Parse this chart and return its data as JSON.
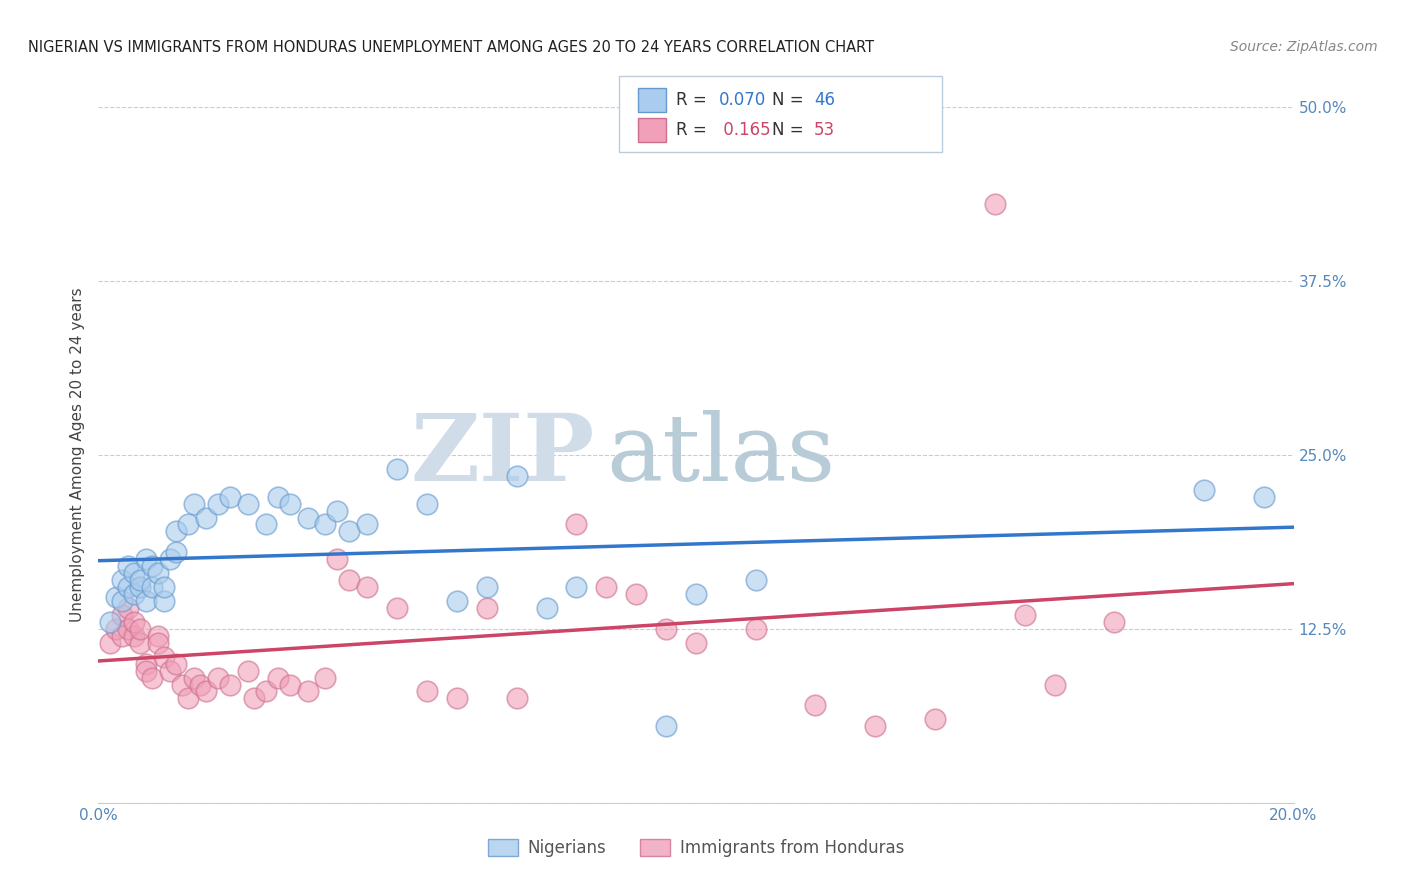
{
  "title": "NIGERIAN VS IMMIGRANTS FROM HONDURAS UNEMPLOYMENT AMONG AGES 20 TO 24 YEARS CORRELATION CHART",
  "source": "Source: ZipAtlas.com",
  "ylabel": "Unemployment Among Ages 20 to 24 years",
  "xlim": [
    0.0,
    0.2
  ],
  "ylim": [
    0.0,
    0.5
  ],
  "yticks": [
    0.0,
    0.125,
    0.25,
    0.375,
    0.5
  ],
  "ytick_labels": [
    "",
    "12.5%",
    "25.0%",
    "37.5%",
    "50.0%"
  ],
  "xticks": [
    0.0,
    0.04,
    0.08,
    0.12,
    0.16,
    0.2
  ],
  "xtick_labels": [
    "0.0%",
    "",
    "",
    "",
    "",
    "20.0%"
  ],
  "nigerian_color": "#aaccee",
  "honduras_color": "#f0a0b8",
  "nigerian_edge": "#6699cc",
  "honduras_edge": "#cc7090",
  "trend_nigerian_color": "#3377cc",
  "trend_honduras_color": "#cc4466",
  "background_color": "#ffffff",
  "grid_color": "#cccccc",
  "title_color": "#222222",
  "axis_label_color": "#5588bb",
  "watermark_zip_color": "#d0dce8",
  "watermark_atlas_color": "#b8ccd8",
  "lentry1_R": "0.070",
  "lentry1_N": "46",
  "lentry2_R": "0.165",
  "lentry2_N": "53",
  "nigerian_x": [
    0.002,
    0.003,
    0.004,
    0.004,
    0.005,
    0.005,
    0.006,
    0.006,
    0.007,
    0.007,
    0.008,
    0.008,
    0.009,
    0.009,
    0.01,
    0.011,
    0.011,
    0.012,
    0.013,
    0.013,
    0.015,
    0.016,
    0.018,
    0.02,
    0.022,
    0.025,
    0.028,
    0.03,
    0.032,
    0.035,
    0.038,
    0.04,
    0.042,
    0.045,
    0.05,
    0.055,
    0.06,
    0.065,
    0.07,
    0.075,
    0.08,
    0.095,
    0.1,
    0.11,
    0.185,
    0.195
  ],
  "nigerian_y": [
    0.13,
    0.148,
    0.145,
    0.16,
    0.155,
    0.17,
    0.15,
    0.165,
    0.155,
    0.16,
    0.145,
    0.175,
    0.155,
    0.17,
    0.165,
    0.145,
    0.155,
    0.175,
    0.195,
    0.18,
    0.2,
    0.215,
    0.205,
    0.215,
    0.22,
    0.215,
    0.2,
    0.22,
    0.215,
    0.205,
    0.2,
    0.21,
    0.195,
    0.2,
    0.24,
    0.215,
    0.145,
    0.155,
    0.235,
    0.14,
    0.155,
    0.055,
    0.15,
    0.16,
    0.225,
    0.22
  ],
  "honduras_x": [
    0.002,
    0.003,
    0.004,
    0.004,
    0.005,
    0.005,
    0.006,
    0.006,
    0.007,
    0.007,
    0.008,
    0.008,
    0.009,
    0.01,
    0.01,
    0.011,
    0.012,
    0.013,
    0.014,
    0.015,
    0.016,
    0.017,
    0.018,
    0.02,
    0.022,
    0.025,
    0.026,
    0.028,
    0.03,
    0.032,
    0.035,
    0.038,
    0.04,
    0.042,
    0.045,
    0.05,
    0.055,
    0.06,
    0.065,
    0.07,
    0.08,
    0.085,
    0.09,
    0.095,
    0.1,
    0.11,
    0.12,
    0.13,
    0.14,
    0.15,
    0.155,
    0.16,
    0.17
  ],
  "honduras_y": [
    0.115,
    0.125,
    0.12,
    0.135,
    0.125,
    0.14,
    0.12,
    0.13,
    0.115,
    0.125,
    0.1,
    0.095,
    0.09,
    0.12,
    0.115,
    0.105,
    0.095,
    0.1,
    0.085,
    0.075,
    0.09,
    0.085,
    0.08,
    0.09,
    0.085,
    0.095,
    0.075,
    0.08,
    0.09,
    0.085,
    0.08,
    0.09,
    0.175,
    0.16,
    0.155,
    0.14,
    0.08,
    0.075,
    0.14,
    0.075,
    0.2,
    0.155,
    0.15,
    0.125,
    0.115,
    0.125,
    0.07,
    0.055,
    0.06,
    0.43,
    0.135,
    0.085,
    0.13
  ]
}
